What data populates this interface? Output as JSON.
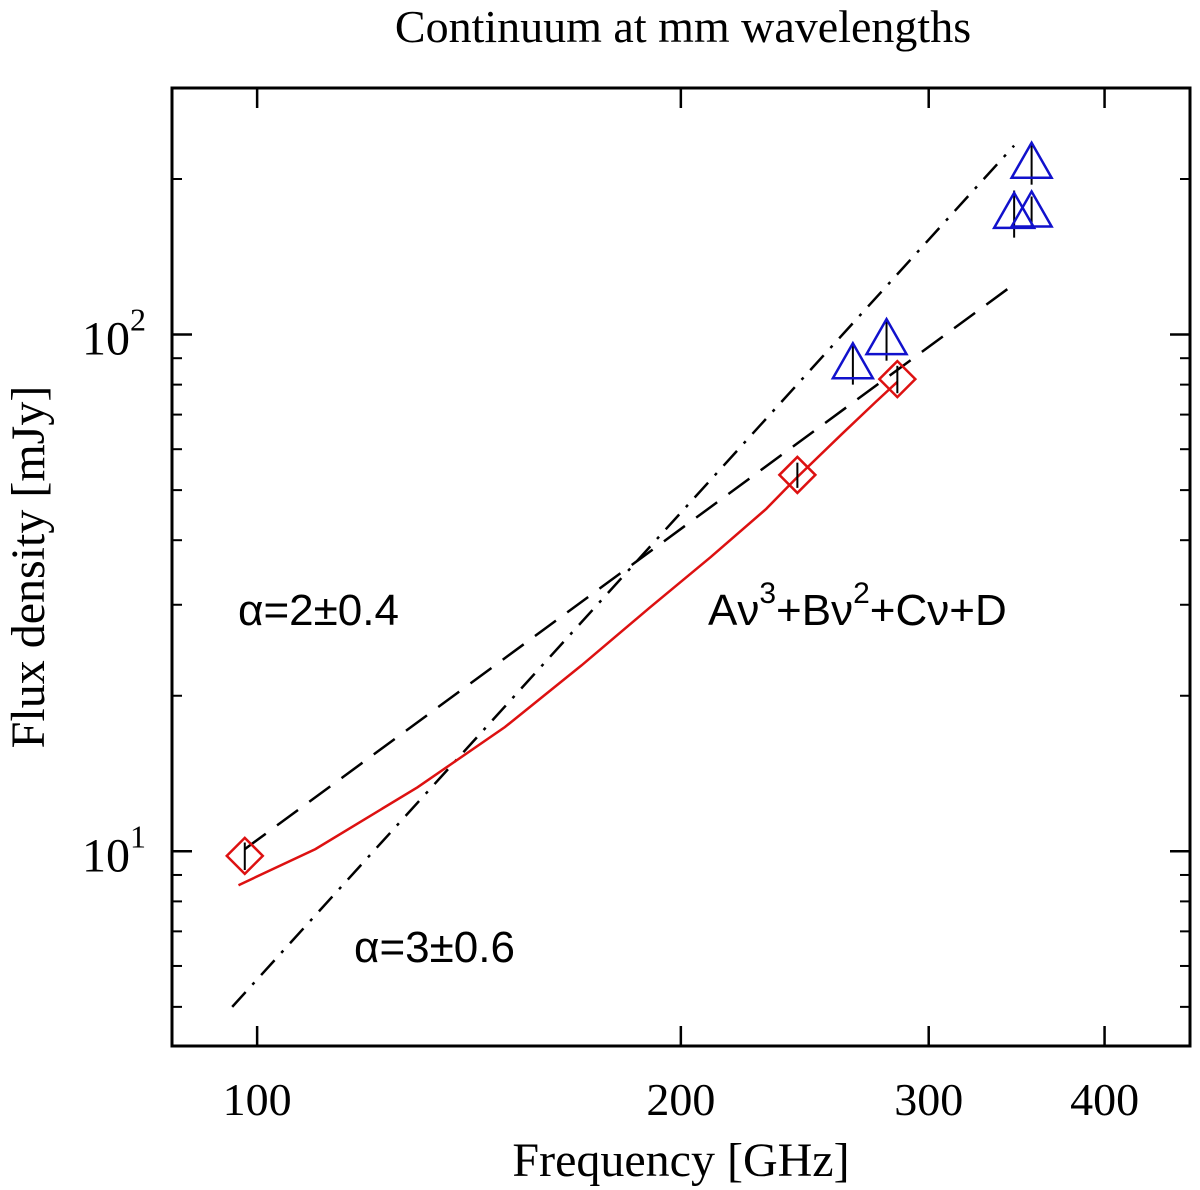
{
  "chart_data": {
    "type": "scatter",
    "title": "Continuum at mm wavelengths",
    "xlabel": "Frequency [GHz]",
    "ylabel": "Flux density [mJy]",
    "xscale": "log",
    "yscale": "log",
    "xlim": [
      87,
      460
    ],
    "ylim": [
      4.2,
      300
    ],
    "xticks": [
      {
        "value": 100,
        "label": "100"
      },
      {
        "value": 200,
        "label": "200"
      },
      {
        "value": 300,
        "label": "300"
      },
      {
        "value": 400,
        "label": "400"
      }
    ],
    "yticks": [
      {
        "value": 10,
        "base": "10",
        "exp": "1"
      },
      {
        "value": 100,
        "base": "10",
        "exp": "2"
      }
    ],
    "series": [
      {
        "name": "diamonds",
        "marker": "diamond",
        "color": "#dd1111",
        "points": [
          {
            "x": 98,
            "y": 9.8,
            "yerr": 0.6
          },
          {
            "x": 242,
            "y": 53.5,
            "yerr": 3
          },
          {
            "x": 285,
            "y": 82,
            "yerr": 5
          }
        ]
      },
      {
        "name": "triangles",
        "marker": "triangle",
        "color": "#1111cc",
        "points": [
          {
            "x": 265,
            "y": 88,
            "yerr": 8
          },
          {
            "x": 280,
            "y": 98,
            "yerr": 9
          },
          {
            "x": 345,
            "y": 172,
            "yerr": 18
          },
          {
            "x": 355,
            "y": 173,
            "yerr": 12
          },
          {
            "x": 355,
            "y": 215,
            "yerr": 20
          }
        ]
      }
    ],
    "fits": [
      {
        "name": "alpha2",
        "style": "dashed",
        "color": "#000000",
        "x_range": [
          98,
          345
        ],
        "y_at_start": 10.1,
        "slope": 2.0
      },
      {
        "name": "alpha3",
        "style": "dashdot",
        "color": "#000000",
        "x_range": [
          96,
          345
        ],
        "y_at_start": 5.0,
        "slope": 3.0
      },
      {
        "name": "cubic",
        "style": "solid",
        "color": "#dd1111",
        "points": [
          [
            97,
            8.6
          ],
          [
            110,
            10.1
          ],
          [
            130,
            13.3
          ],
          [
            150,
            17.4
          ],
          [
            170,
            22.9
          ],
          [
            190,
            29.6
          ],
          [
            210,
            37.1
          ],
          [
            230,
            46.0
          ],
          [
            242,
            53.0
          ],
          [
            260,
            64.0
          ],
          [
            275,
            74.0
          ],
          [
            285,
            81.0
          ]
        ]
      }
    ],
    "annotations": {
      "alpha2_label": "α=2±0.4",
      "alpha3_label": "α=3±0.6",
      "poly_label": {
        "p1": "Aν",
        "s1": "3",
        "p2": "+Bν",
        "s2": "2",
        "p3": "+Cν+D"
      }
    }
  }
}
